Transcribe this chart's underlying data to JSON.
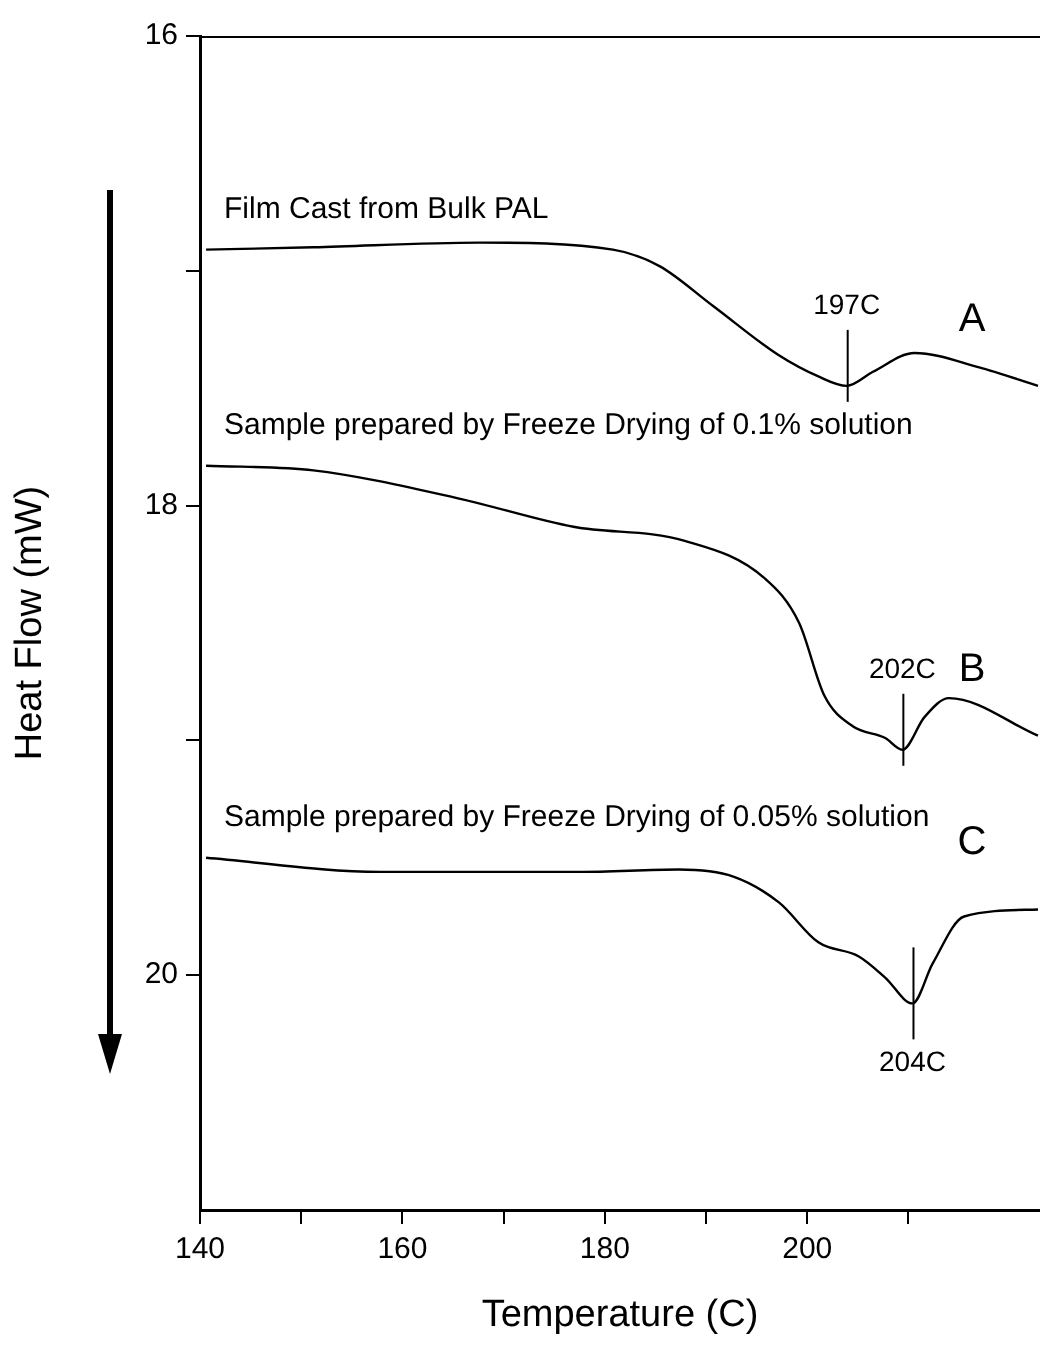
{
  "chart_data": {
    "type": "line",
    "xlabel": "Temperature (C)",
    "ylabel": "Heat Flow (mW)",
    "xlim": [
      140,
      223
    ],
    "ylim": [
      21,
      16
    ],
    "xticks": [
      140,
      {
        "value": 150,
        "label": null
      },
      160,
      {
        "value": 170,
        "label": null
      },
      180,
      {
        "value": 190,
        "label": null
      },
      200,
      {
        "value": 210,
        "label": null
      }
    ],
    "yticks": [
      16,
      {
        "value": 17,
        "label": null
      },
      18,
      {
        "value": 19,
        "label": null
      },
      20
    ],
    "grid": false,
    "legend": false,
    "marker": "none",
    "line_style": "solid",
    "series": [
      {
        "name": "A",
        "color": "#000000",
        "x": [
          140.6,
          151.2,
          167.6,
          180.8,
          185.4,
          190.7,
          197.2,
          201.1,
          203.9,
          206.5,
          210.6,
          216.9,
          222.8
        ],
        "values": [
          16.91,
          16.9,
          16.88,
          16.91,
          16.98,
          17.15,
          17.36,
          17.45,
          17.49,
          17.43,
          17.35,
          17.41,
          17.49
        ]
      },
      {
        "name": "B",
        "color": "#000000",
        "x": [
          140.6,
          151.2,
          165.6,
          176.9,
          187.9,
          195.8,
          199.2,
          201.7,
          204.5,
          207.7,
          209.4,
          211.6,
          214.0,
          222.8
        ],
        "values": [
          17.83,
          17.85,
          17.97,
          18.09,
          18.15,
          18.31,
          18.5,
          18.81,
          18.94,
          18.99,
          19.04,
          18.9,
          18.82,
          18.98
        ]
      },
      {
        "name": "C",
        "color": "#000000",
        "x": [
          140.6,
          157.8,
          177.5,
          187.3,
          192.7,
          197.2,
          201.1,
          205.1,
          207.7,
          210.4,
          212.4,
          215.5,
          222.8
        ],
        "values": [
          19.5,
          19.56,
          19.56,
          19.55,
          19.58,
          19.69,
          19.86,
          19.92,
          20.01,
          20.12,
          19.95,
          19.75,
          19.72
        ]
      }
    ],
    "annotations": [
      "Film Cast from Bulk PAL",
      "Sample prepared by Freeze Drying of 0.1% solution",
      "Sample prepared by Freeze Drying of 0.05% solution",
      {
        "text": "197C",
        "x": 203.9,
        "y": 17.49
      },
      {
        "text": "202C",
        "x": 209.4,
        "y": 19.04
      },
      {
        "text": "204C",
        "x": 210.4,
        "y": 20.12
      }
    ]
  }
}
